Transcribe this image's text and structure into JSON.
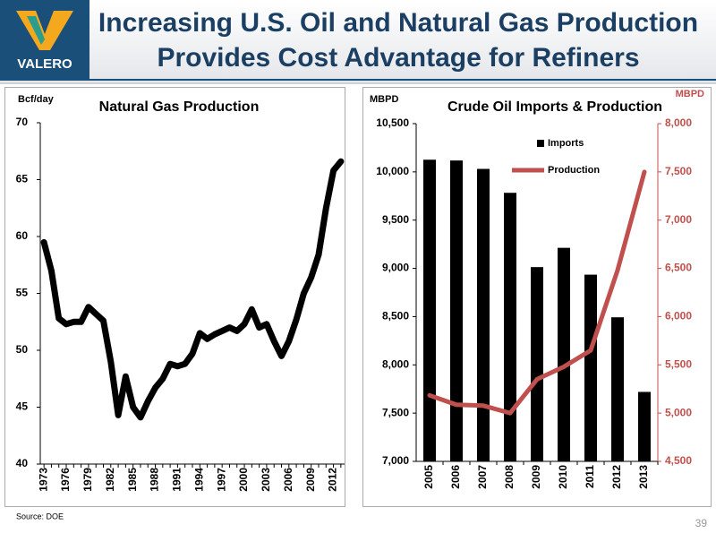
{
  "header": {
    "logo": "VALERO",
    "title_lines": [
      "Increasing U.S. Oil and Natural Gas Production",
      "Provides Cost Advantage for Refiners"
    ]
  },
  "chart_data": [
    {
      "type": "line",
      "title": "Natural Gas Production",
      "y_label": "Bcf/day",
      "color": "#000000",
      "categories": [
        "1973",
        null,
        null,
        "1976",
        null,
        null,
        "1979",
        null,
        null,
        "1982",
        null,
        null,
        "1985",
        null,
        null,
        "1988",
        null,
        null,
        "1991",
        null,
        null,
        "1994",
        null,
        null,
        "1997",
        null,
        null,
        "2000",
        null,
        null,
        "2003",
        null,
        null,
        "2006",
        null,
        null,
        "2009",
        null,
        null,
        "2012",
        null
      ],
      "values": [
        59.5,
        57.0,
        52.8,
        52.3,
        52.5,
        52.5,
        53.8,
        53.2,
        52.6,
        49.0,
        44.3,
        47.7,
        45.0,
        44.1,
        45.5,
        46.7,
        47.5,
        48.8,
        48.6,
        48.8,
        49.7,
        51.5,
        51.0,
        51.4,
        51.7,
        52.0,
        51.7,
        52.3,
        53.6,
        52.0,
        52.3,
        50.8,
        49.5,
        50.8,
        52.7,
        55.0,
        56.4,
        58.4,
        62.5,
        65.8,
        66.6
      ],
      "ylim": [
        40,
        70
      ],
      "yticks": [
        40,
        45,
        50,
        55,
        60,
        65,
        70
      ]
    },
    {
      "type": "bar",
      "title": "Crude Oil Imports & Production",
      "y_label": "MBPD",
      "y2_label": "MBPD",
      "categories": [
        "2005",
        "2006",
        "2007",
        "2008",
        "2009",
        "2010",
        "2011",
        "2012",
        "2013"
      ],
      "series": [
        {
          "name": "Imports",
          "type": "bar",
          "color": "#000000",
          "values": [
            10126,
            10118,
            10031,
            9783,
            9013,
            9213,
            8935,
            8493,
            7720
          ]
        },
        {
          "name": "Production",
          "type": "line",
          "axis": "y2",
          "color": "#c0504d",
          "values": [
            5184,
            5087,
            5077,
            5000,
            5350,
            5480,
            5650,
            6480,
            7500
          ]
        }
      ],
      "ylim": [
        7000,
        10500
      ],
      "yticks": [
        {
          "value": 7000,
          "label": "7,000"
        },
        {
          "value": 7500,
          "label": "7,500"
        },
        {
          "value": 8000,
          "label": "8,000"
        },
        {
          "value": 8500,
          "label": "8,500"
        },
        {
          "value": 9000,
          "label": "9,000"
        },
        {
          "value": 9500,
          "label": "9,500"
        },
        {
          "value": 10000,
          "label": "10,000"
        },
        {
          "value": 10500,
          "label": "10,500"
        }
      ],
      "y2lim": [
        4500,
        8000
      ],
      "y2ticks": [
        {
          "value": 4500,
          "label": "4,500"
        },
        {
          "value": 5000,
          "label": "5,000"
        },
        {
          "value": 5500,
          "label": "5,500"
        },
        {
          "value": 6000,
          "label": "6,000"
        },
        {
          "value": 6500,
          "label": "6,500"
        },
        {
          "value": 7000,
          "label": "7,000"
        },
        {
          "value": 7500,
          "label": "7,500"
        },
        {
          "value": 8000,
          "label": "8,000"
        }
      ]
    }
  ],
  "footer": {
    "source": "Source:  DOE",
    "page": "39"
  }
}
